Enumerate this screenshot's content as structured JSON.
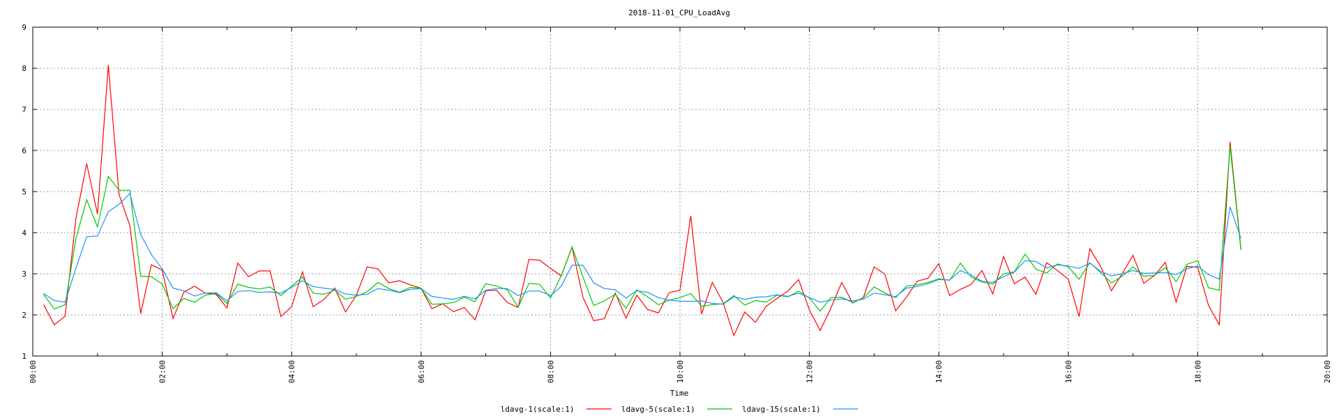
{
  "chart_data": {
    "type": "line",
    "title": "2018-11-01_CPU_LoadAvg",
    "xlabel": "Time",
    "ylabel": "",
    "ylim": [
      1,
      9
    ],
    "xlim": [
      "00:00",
      "20:00"
    ],
    "grid": true,
    "legend_placement": "bottom-center",
    "x_tick_labels": [
      "00:00",
      "02:00",
      "04:00",
      "06:00",
      "08:00",
      "10:00",
      "12:00",
      "14:00",
      "16:00",
      "18:00",
      "20:00"
    ],
    "y_tick_labels": [
      "1",
      "2",
      "3",
      "4",
      "5",
      "6",
      "7",
      "8",
      "9"
    ],
    "x": [
      "00:10",
      "00:20",
      "00:30",
      "00:40",
      "00:50",
      "01:00",
      "01:10",
      "01:20",
      "01:30",
      "01:40",
      "01:50",
      "02:00",
      "02:10",
      "02:20",
      "02:30",
      "02:40",
      "02:50",
      "03:00",
      "03:10",
      "03:20",
      "03:30",
      "03:40",
      "03:50",
      "04:00",
      "04:10",
      "04:20",
      "04:30",
      "04:40",
      "04:50",
      "05:00",
      "05:10",
      "05:20",
      "05:30",
      "05:40",
      "05:50",
      "06:00",
      "06:10",
      "06:20",
      "06:30",
      "06:40",
      "06:50",
      "07:00",
      "07:10",
      "07:20",
      "07:30",
      "07:40",
      "07:50",
      "08:00",
      "08:10",
      "08:20",
      "08:30",
      "08:40",
      "08:50",
      "09:00",
      "09:10",
      "09:20",
      "09:30",
      "09:40",
      "09:50",
      "10:00",
      "10:10",
      "10:20",
      "10:30",
      "10:40",
      "10:50",
      "11:00",
      "11:10",
      "11:20",
      "11:30",
      "11:40",
      "11:50",
      "12:00",
      "12:10",
      "12:20",
      "12:30",
      "12:40",
      "12:50",
      "13:00",
      "13:10",
      "13:20",
      "13:30",
      "13:40",
      "13:50",
      "14:00",
      "14:10",
      "14:20",
      "14:30",
      "14:40",
      "14:50",
      "15:00",
      "15:10",
      "15:20",
      "15:30",
      "15:40",
      "15:50",
      "16:00",
      "16:10",
      "16:20",
      "16:30",
      "16:40",
      "16:50",
      "17:00",
      "17:10",
      "17:20",
      "17:30",
      "17:40",
      "17:50",
      "18:00",
      "18:10",
      "18:20",
      "18:30",
      "18:40"
    ],
    "series": [
      {
        "name": "ldavg-1(scale:1)",
        "color": "#ff0000",
        "values": [
          2.25,
          1.76,
          1.97,
          4.35,
          5.68,
          4.45,
          8.08,
          4.93,
          4.17,
          2.03,
          3.22,
          3.09,
          1.91,
          2.55,
          2.7,
          2.53,
          2.5,
          2.17,
          3.26,
          2.93,
          3.07,
          3.07,
          1.96,
          2.2,
          3.05,
          2.2,
          2.38,
          2.65,
          2.07,
          2.48,
          3.17,
          3.12,
          2.78,
          2.83,
          2.73,
          2.65,
          2.15,
          2.27,
          2.08,
          2.18,
          1.88,
          2.59,
          2.6,
          2.3,
          2.18,
          3.35,
          3.33,
          3.13,
          2.95,
          3.65,
          2.43,
          1.86,
          1.91,
          2.53,
          1.92,
          2.48,
          2.13,
          2.05,
          2.54,
          2.6,
          4.41,
          2.02,
          2.79,
          2.3,
          1.5,
          2.07,
          1.82,
          2.21,
          2.4,
          2.58,
          2.86,
          2.12,
          1.62,
          2.17,
          2.79,
          2.29,
          2.42,
          3.17,
          2.99,
          2.1,
          2.43,
          2.82,
          2.89,
          3.25,
          2.47,
          2.62,
          2.74,
          3.08,
          2.51,
          3.42,
          2.76,
          2.92,
          2.5,
          3.27,
          3.08,
          2.87,
          1.96,
          3.61,
          3.18,
          2.59,
          3.0,
          3.45,
          2.77,
          2.96,
          3.28,
          2.31,
          3.18,
          3.16,
          2.23,
          1.76,
          6.21,
          3.61
        ]
      },
      {
        "name": "ldavg-5(scale:1)",
        "color": "#00c800",
        "values": [
          2.5,
          2.14,
          2.25,
          3.86,
          4.8,
          4.14,
          5.37,
          5.03,
          5.03,
          2.94,
          2.93,
          2.75,
          2.15,
          2.4,
          2.31,
          2.48,
          2.52,
          2.28,
          2.75,
          2.67,
          2.63,
          2.68,
          2.47,
          2.7,
          2.92,
          2.53,
          2.5,
          2.6,
          2.38,
          2.45,
          2.56,
          2.79,
          2.64,
          2.55,
          2.67,
          2.65,
          2.26,
          2.27,
          2.3,
          2.43,
          2.32,
          2.76,
          2.7,
          2.61,
          2.19,
          2.77,
          2.74,
          2.41,
          2.96,
          3.65,
          2.93,
          2.23,
          2.34,
          2.5,
          2.16,
          2.61,
          2.44,
          2.25,
          2.36,
          2.42,
          2.52,
          2.21,
          2.25,
          2.27,
          2.47,
          2.24,
          2.35,
          2.31,
          2.48,
          2.44,
          2.58,
          2.41,
          2.09,
          2.42,
          2.43,
          2.3,
          2.41,
          2.68,
          2.53,
          2.42,
          2.7,
          2.73,
          2.79,
          2.88,
          2.84,
          3.26,
          2.92,
          2.8,
          2.75,
          3.0,
          3.05,
          3.48,
          3.11,
          3.02,
          3.24,
          3.17,
          2.87,
          3.27,
          3.03,
          2.78,
          2.94,
          3.17,
          2.94,
          2.96,
          3.15,
          2.81,
          3.23,
          3.32,
          2.66,
          2.6,
          6.11,
          3.58
        ]
      },
      {
        "name": "ldavg-15(scale:1)",
        "color": "#1e90ff",
        "values": [
          2.52,
          2.35,
          2.31,
          3.14,
          3.9,
          3.92,
          4.51,
          4.69,
          4.95,
          3.96,
          3.47,
          3.12,
          2.65,
          2.59,
          2.46,
          2.53,
          2.54,
          2.34,
          2.57,
          2.59,
          2.55,
          2.56,
          2.53,
          2.67,
          2.83,
          2.69,
          2.65,
          2.62,
          2.51,
          2.48,
          2.5,
          2.64,
          2.6,
          2.54,
          2.62,
          2.64,
          2.45,
          2.41,
          2.38,
          2.45,
          2.39,
          2.6,
          2.64,
          2.64,
          2.47,
          2.58,
          2.58,
          2.47,
          2.7,
          3.21,
          3.21,
          2.78,
          2.64,
          2.61,
          2.41,
          2.59,
          2.55,
          2.42,
          2.36,
          2.33,
          2.33,
          2.34,
          2.28,
          2.26,
          2.44,
          2.38,
          2.43,
          2.44,
          2.49,
          2.45,
          2.53,
          2.42,
          2.31,
          2.36,
          2.39,
          2.34,
          2.38,
          2.53,
          2.49,
          2.44,
          2.65,
          2.69,
          2.76,
          2.86,
          2.85,
          3.08,
          2.97,
          2.82,
          2.79,
          2.93,
          3.04,
          3.32,
          3.3,
          3.14,
          3.22,
          3.19,
          3.13,
          3.26,
          3.06,
          2.95,
          3.0,
          3.08,
          3.01,
          3.02,
          3.03,
          2.98,
          3.12,
          3.19,
          2.98,
          2.87,
          4.63,
          3.87
        ]
      }
    ]
  }
}
